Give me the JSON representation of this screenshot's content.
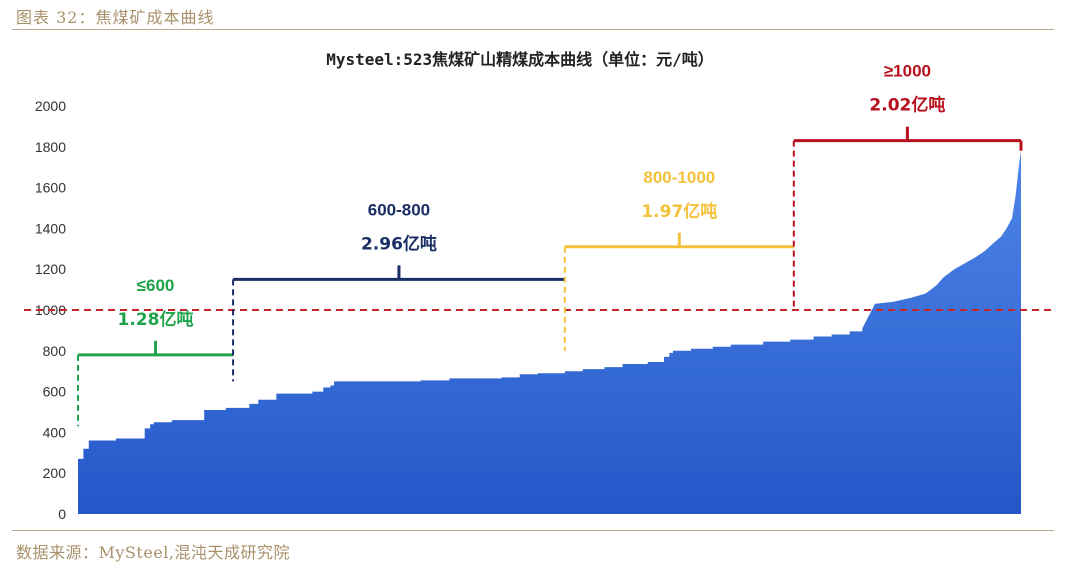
{
  "figure": {
    "caption": "图表 32：焦煤矿成本曲线",
    "source": "数据来源：MySteel,混沌天成研究院"
  },
  "colors": {
    "fill_top": "#4f86e8",
    "fill_bottom": "#2357c8",
    "reference_line": "#c0262b",
    "green": "#1fa34a",
    "navy": "#1b2f66",
    "yellow": "#f4c23a",
    "red": "#b8101c",
    "axis_text": "#333333"
  },
  "chart_data": {
    "type": "area",
    "title": "Mysteel:523焦煤矿山精煤成本曲线（单位：元/吨）",
    "xlabel": "",
    "ylabel": "",
    "ylim": [
      0,
      2000
    ],
    "yticks": [
      "0",
      "200",
      "400",
      "600",
      "800",
      "1000",
      "1200",
      "1400",
      "1600",
      "1800",
      "2000"
    ],
    "grid": false,
    "x_domain": [
      0,
      523
    ],
    "step_points": [
      [
        0,
        270
      ],
      [
        3,
        320
      ],
      [
        6,
        360
      ],
      [
        21,
        370
      ],
      [
        37,
        420
      ],
      [
        40,
        440
      ],
      [
        42,
        450
      ],
      [
        52,
        460
      ],
      [
        70,
        510
      ],
      [
        82,
        520
      ],
      [
        95,
        540
      ],
      [
        100,
        560
      ],
      [
        110,
        590
      ],
      [
        130,
        600
      ],
      [
        136,
        620
      ],
      [
        140,
        630
      ],
      [
        142,
        650
      ],
      [
        190,
        655
      ],
      [
        206,
        665
      ],
      [
        235,
        670
      ],
      [
        245,
        685
      ],
      [
        255,
        690
      ],
      [
        270,
        700
      ],
      [
        280,
        710
      ],
      [
        292,
        720
      ],
      [
        302,
        735
      ],
      [
        316,
        745
      ],
      [
        325,
        770
      ],
      [
        328,
        790
      ],
      [
        330,
        800
      ],
      [
        340,
        810
      ],
      [
        352,
        820
      ],
      [
        362,
        830
      ],
      [
        380,
        845
      ],
      [
        395,
        855
      ],
      [
        408,
        870
      ],
      [
        418,
        880
      ],
      [
        428,
        895
      ],
      [
        435,
        910
      ],
      [
        443,
        940
      ],
      [
        452,
        970
      ],
      [
        458,
        990
      ],
      [
        462,
        1000
      ],
      [
        468,
        1010
      ],
      [
        480,
        1020
      ],
      [
        490,
        1025
      ],
      [
        510,
        1030
      ],
      [
        512,
        1040
      ],
      [
        515,
        1060
      ],
      [
        518,
        1080
      ],
      [
        520,
        1090
      ],
      [
        523,
        1090
      ]
    ],
    "step_points_upper": [
      [
        455,
        1000
      ],
      [
        461,
        1000
      ],
      [
        475,
        1010
      ],
      [
        487,
        1015
      ],
      [
        500,
        1020
      ],
      [
        505,
        1030
      ],
      [
        512,
        1040
      ],
      [
        515,
        1080
      ],
      [
        517,
        1100
      ],
      [
        519,
        1130
      ],
      [
        521,
        1160
      ],
      [
        522,
        1200
      ],
      [
        523,
        1230
      ]
    ],
    "tail_points": [
      [
        442,
        1030
      ],
      [
        452,
        1040
      ],
      [
        462,
        1060
      ],
      [
        470,
        1080
      ],
      [
        476,
        1120
      ],
      [
        480,
        1160
      ],
      [
        486,
        1200
      ],
      [
        492,
        1230
      ],
      [
        498,
        1260
      ],
      [
        503,
        1290
      ],
      [
        508,
        1330
      ],
      [
        512,
        1360
      ],
      [
        515,
        1400
      ],
      [
        518,
        1450
      ],
      [
        520,
        1560
      ],
      [
        521,
        1640
      ],
      [
        522,
        1720
      ],
      [
        523,
        1780
      ]
    ],
    "reference_line": {
      "y": 1000
    },
    "groups": [
      {
        "range": "≤600",
        "volume": "1.28亿吨",
        "x_start": 0,
        "x_end": 86,
        "bracket_y": 780,
        "color": "green"
      },
      {
        "range": "600-800",
        "volume": "2.96亿吨",
        "x_start": 86,
        "x_end": 270,
        "bracket_y": 1150,
        "color": "navy"
      },
      {
        "range": "800-1000",
        "volume": "1.97亿吨",
        "x_start": 270,
        "x_end": 397,
        "bracket_y": 1310,
        "color": "yellow"
      },
      {
        "range": "≥1000",
        "volume": "2.02亿吨",
        "x_start": 397,
        "x_end": 523,
        "bracket_y": 1830,
        "color": "red"
      }
    ]
  }
}
